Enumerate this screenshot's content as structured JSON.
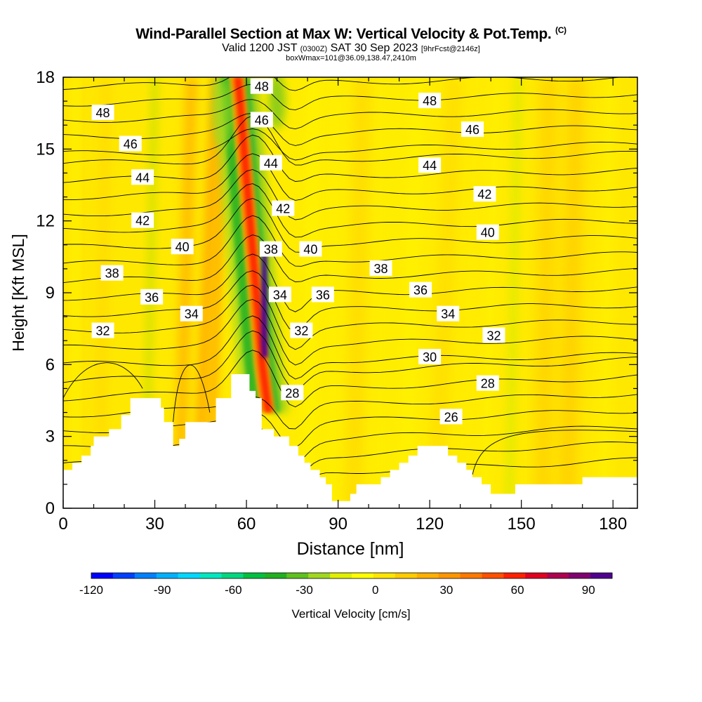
{
  "chart_data": {
    "type": "heatmap",
    "title": "Wind-Parallel Section at Max W: Vertical Velocity & Pot.Temp.",
    "title_suffix": "(C)",
    "subtitle_valid": "Valid 1200 JST",
    "subtitle_utc": "(0300Z)",
    "subtitle_date": "SAT 30 Sep 2023",
    "subtitle_fcst": "[9hrFcst@2146z]",
    "subtitle_box": "boxWmax=101@36.09,138.47,2410m",
    "xlabel": "Distance [nm]",
    "ylabel": "Height [Kft MSL]",
    "xlim": [
      0,
      188
    ],
    "ylim": [
      0,
      18
    ],
    "x_ticks": [
      "0",
      "30",
      "60",
      "90",
      "120",
      "150",
      "180"
    ],
    "y_ticks": [
      "0",
      "3",
      "6",
      "9",
      "12",
      "15",
      "18"
    ],
    "colorbar": {
      "label": "Vertical Velocity [cm/s]",
      "range": [
        -120,
        100
      ],
      "tick_labels": [
        "-120",
        "-90",
        "-60",
        "-30",
        "0",
        "30",
        "60",
        "90"
      ],
      "colors": [
        "#0000ff",
        "#0040ff",
        "#0080ff",
        "#00b0ff",
        "#00d8ff",
        "#00e8c0",
        "#00d880",
        "#00c040",
        "#20b020",
        "#60c020",
        "#a0d820",
        "#e0f000",
        "#ffff00",
        "#ffe600",
        "#ffcc00",
        "#ffb000",
        "#ff9600",
        "#ff7800",
        "#ff5000",
        "#ff2000",
        "#e00020",
        "#b00050",
        "#800070",
        "#500090"
      ]
    },
    "theta_contour_labels": [
      {
        "label": "48",
        "x": 13,
        "y": 16.5
      },
      {
        "label": "46",
        "x": 22,
        "y": 15.2
      },
      {
        "label": "44",
        "x": 26,
        "y": 13.8
      },
      {
        "label": "42",
        "x": 26,
        "y": 12.0
      },
      {
        "label": "40",
        "x": 39,
        "y": 10.9
      },
      {
        "label": "38",
        "x": 16,
        "y": 9.8
      },
      {
        "label": "36",
        "x": 29,
        "y": 8.8
      },
      {
        "label": "34",
        "x": 42,
        "y": 8.1
      },
      {
        "label": "32",
        "x": 13,
        "y": 7.4
      },
      {
        "label": "48",
        "x": 65,
        "y": 17.6
      },
      {
        "label": "46",
        "x": 65,
        "y": 16.2
      },
      {
        "label": "44",
        "x": 68,
        "y": 14.4
      },
      {
        "label": "42",
        "x": 72,
        "y": 12.5
      },
      {
        "label": "38",
        "x": 68,
        "y": 10.8
      },
      {
        "label": "40",
        "x": 81,
        "y": 10.8
      },
      {
        "label": "34",
        "x": 71,
        "y": 8.9
      },
      {
        "label": "36",
        "x": 85,
        "y": 8.9
      },
      {
        "label": "32",
        "x": 78,
        "y": 7.4
      },
      {
        "label": "28",
        "x": 75,
        "y": 4.8
      },
      {
        "label": "38",
        "x": 104,
        "y": 10.0
      },
      {
        "label": "48",
        "x": 120,
        "y": 17.0
      },
      {
        "label": "46",
        "x": 134,
        "y": 15.8
      },
      {
        "label": "44",
        "x": 120,
        "y": 14.3
      },
      {
        "label": "42",
        "x": 138,
        "y": 13.1
      },
      {
        "label": "40",
        "x": 139,
        "y": 11.5
      },
      {
        "label": "36",
        "x": 117,
        "y": 9.1
      },
      {
        "label": "34",
        "x": 126,
        "y": 8.1
      },
      {
        "label": "32",
        "x": 141,
        "y": 7.2
      },
      {
        "label": "30",
        "x": 120,
        "y": 6.3
      },
      {
        "label": "28",
        "x": 139,
        "y": 5.2
      },
      {
        "label": "26",
        "x": 127,
        "y": 3.8
      }
    ],
    "terrain_profile": [
      [
        0,
        1.6
      ],
      [
        3,
        1.6
      ],
      [
        3,
        1.9
      ],
      [
        6,
        1.9
      ],
      [
        6,
        2.2
      ],
      [
        9,
        2.2
      ],
      [
        9,
        2.6
      ],
      [
        10,
        2.6
      ],
      [
        10,
        3.0
      ],
      [
        15,
        3.0
      ],
      [
        15,
        3.3
      ],
      [
        19,
        3.3
      ],
      [
        19,
        3.9
      ],
      [
        22,
        3.9
      ],
      [
        22,
        4.6
      ],
      [
        32,
        4.6
      ],
      [
        32,
        4.2
      ],
      [
        33,
        4.2
      ],
      [
        33,
        3.6
      ],
      [
        36,
        3.6
      ],
      [
        36,
        2.6
      ],
      [
        38,
        2.6
      ],
      [
        38,
        2.9
      ],
      [
        40,
        2.9
      ],
      [
        40,
        3.6
      ],
      [
        50,
        3.6
      ],
      [
        50,
        4.6
      ],
      [
        55,
        4.6
      ],
      [
        55,
        5.6
      ],
      [
        61,
        5.6
      ],
      [
        61,
        4.9
      ],
      [
        63,
        4.9
      ],
      [
        63,
        4.6
      ],
      [
        65,
        4.6
      ],
      [
        65,
        3.3
      ],
      [
        69,
        3.3
      ],
      [
        69,
        3.0
      ],
      [
        74,
        3.0
      ],
      [
        74,
        2.6
      ],
      [
        77,
        2.6
      ],
      [
        77,
        2.2
      ],
      [
        79,
        2.2
      ],
      [
        79,
        1.9
      ],
      [
        81,
        1.9
      ],
      [
        81,
        1.6
      ],
      [
        84,
        1.6
      ],
      [
        84,
        1.3
      ],
      [
        86,
        1.3
      ],
      [
        86,
        1.0
      ],
      [
        88,
        1.0
      ],
      [
        88,
        0.3
      ],
      [
        94,
        0.3
      ],
      [
        94,
        0.6
      ],
      [
        96,
        0.6
      ],
      [
        96,
        1.0
      ],
      [
        104,
        1.0
      ],
      [
        104,
        1.3
      ],
      [
        107,
        1.3
      ],
      [
        107,
        1.6
      ],
      [
        110,
        1.6
      ],
      [
        110,
        1.9
      ],
      [
        113,
        1.9
      ],
      [
        113,
        2.2
      ],
      [
        116,
        2.2
      ],
      [
        116,
        2.6
      ],
      [
        126,
        2.6
      ],
      [
        126,
        2.2
      ],
      [
        129,
        2.2
      ],
      [
        129,
        1.9
      ],
      [
        132,
        1.9
      ],
      [
        132,
        1.6
      ],
      [
        134,
        1.6
      ],
      [
        134,
        1.3
      ],
      [
        137,
        1.3
      ],
      [
        137,
        1.0
      ],
      [
        140,
        1.0
      ],
      [
        140,
        0.6
      ],
      [
        148,
        0.6
      ],
      [
        148,
        1.0
      ],
      [
        170,
        1.0
      ],
      [
        170,
        1.3
      ],
      [
        176,
        1.3
      ],
      [
        176,
        1.3
      ],
      [
        188,
        1.3
      ]
    ],
    "updraft_core": {
      "x_range": [
        62,
        70
      ],
      "peak_cm_s": 101,
      "height_range": [
        4,
        18
      ]
    },
    "downdraft_bands": [
      {
        "x_range": [
          55,
          66
        ],
        "min_cm_s": -45
      },
      {
        "x_range": [
          25,
          30
        ],
        "min_cm_s": -20
      },
      {
        "x_range": [
          143,
          148
        ],
        "min_cm_s": -20
      }
    ]
  }
}
